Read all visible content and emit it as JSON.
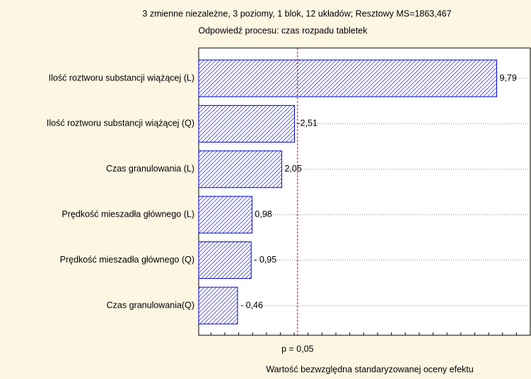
{
  "chart_data": {
    "type": "bar",
    "orientation": "horizontal",
    "title": "3 zmienne niezależne, 3 poziomy, 1 blok, 12 układów; Resztowy MS=1863,467",
    "subtitle": "Odpowiedź procesu: czas rozpadu tabletek",
    "x_label": "Wartość bezwzględna standaryzowanej oceny efektu",
    "categories": [
      "Ilość roztworu substancji wiążącej (L)",
      "Ilość roztworu substancji wiążącej (Q)",
      "Czas granulowania (L)",
      "Prędkość mieszadła głównego (L)",
      "Prędkość mieszadła głównego (Q)",
      "Czas granulowania(Q)"
    ],
    "values": [
      9.79,
      2.51,
      2.05,
      0.98,
      0.95,
      0.46
    ],
    "value_labels": [
      "9,79",
      "-2,51",
      "2,05",
      "0,98",
      "- 0,95",
      "- 0,46"
    ],
    "color": "#0000cc",
    "xlim": [
      -0.94,
      11.0
    ],
    "xticks": [
      -0.5,
      0,
      0.5,
      1,
      1.5,
      2,
      2.5,
      3,
      3.5,
      4,
      4.5,
      5,
      5.5,
      6,
      6.5,
      7,
      7.5,
      8,
      8.5,
      9,
      9.5,
      10,
      10.5
    ],
    "reference_line": {
      "value": 2.62,
      "label": "p = 0,05",
      "color": "#cc0000"
    },
    "grid": true
  }
}
